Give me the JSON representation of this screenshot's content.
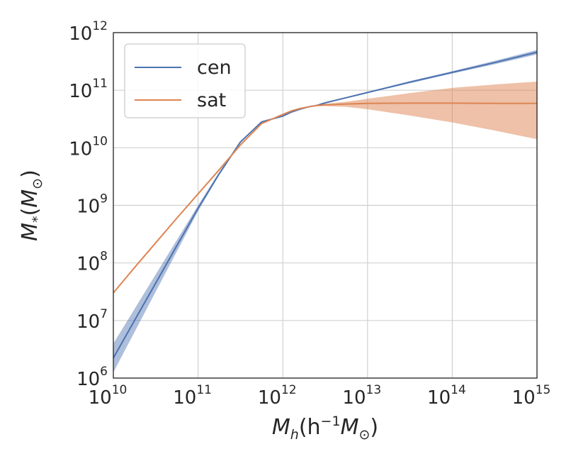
{
  "chart_data": {
    "type": "line",
    "xscale": "log",
    "yscale": "log",
    "xlim": [
      10000000000.0,
      1000000000000000.0
    ],
    "ylim": [
      1000000.0,
      1000000000000.0
    ],
    "grid": true,
    "legend_position": "top-left",
    "xlabel": {
      "base": "M",
      "sub": "h",
      "open": "(h",
      "sup": "−1",
      "mid": "M",
      "sun": "⊙",
      "close": ")"
    },
    "ylabel": {
      "base": "M",
      "sub": "*",
      "open": "(",
      "mid": "M",
      "sun": "⊙",
      "close": ")"
    },
    "x_ticks": [
      {
        "value": 10000000000.0,
        "base": "10",
        "exp": "10"
      },
      {
        "value": 100000000000.0,
        "base": "10",
        "exp": "11"
      },
      {
        "value": 1000000000000.0,
        "base": "10",
        "exp": "12"
      },
      {
        "value": 10000000000000.0,
        "base": "10",
        "exp": "13"
      },
      {
        "value": 100000000000000.0,
        "base": "10",
        "exp": "14"
      },
      {
        "value": 1000000000000000.0,
        "base": "10",
        "exp": "15"
      }
    ],
    "y_ticks": [
      {
        "value": 1000000.0,
        "base": "10",
        "exp": "6"
      },
      {
        "value": 10000000.0,
        "base": "10",
        "exp": "7"
      },
      {
        "value": 100000000.0,
        "base": "10",
        "exp": "8"
      },
      {
        "value": 1000000000.0,
        "base": "10",
        "exp": "9"
      },
      {
        "value": 10000000000.0,
        "base": "10",
        "exp": "10"
      },
      {
        "value": 100000000000.0,
        "base": "10",
        "exp": "11"
      },
      {
        "value": 1000000000000.0,
        "base": "10",
        "exp": "12"
      }
    ],
    "series": [
      {
        "name": "cen",
        "color": "#4c72b0",
        "log_x": [
          10.0,
          10.25,
          10.5,
          10.75,
          11.0,
          11.25,
          11.5,
          11.75,
          12.0,
          12.1,
          12.2,
          12.3,
          12.4,
          12.5,
          12.75,
          13.0,
          13.5,
          14.0,
          14.5,
          15.0
        ],
        "log_y": [
          6.35,
          7.0,
          7.65,
          8.3,
          8.95,
          9.55,
          10.1,
          10.45,
          10.55,
          10.62,
          10.67,
          10.71,
          10.735,
          10.78,
          10.87,
          10.96,
          11.14,
          11.31,
          11.48,
          11.66
        ],
        "band_lower": [
          6.1,
          6.8,
          7.5,
          8.2,
          8.9,
          9.53,
          10.09,
          10.44,
          10.54,
          10.61,
          10.66,
          10.7,
          10.725,
          10.77,
          10.86,
          10.95,
          11.12,
          11.29,
          11.45,
          11.62
        ],
        "band_upper": [
          6.6,
          7.2,
          7.8,
          8.4,
          9.0,
          9.58,
          10.12,
          10.46,
          10.56,
          10.63,
          10.68,
          10.72,
          10.745,
          10.79,
          10.88,
          10.97,
          11.16,
          11.33,
          11.51,
          11.7
        ]
      },
      {
        "name": "sat",
        "color": "#dd8452",
        "log_x": [
          10.0,
          10.25,
          10.5,
          10.75,
          11.0,
          11.25,
          11.5,
          11.75,
          12.0,
          12.1,
          12.2,
          12.3,
          12.4,
          12.5,
          12.75,
          13.0,
          13.5,
          14.0,
          14.5,
          15.0
        ],
        "log_y": [
          7.48,
          7.92,
          8.35,
          8.78,
          9.2,
          9.62,
          10.05,
          10.42,
          10.58,
          10.64,
          10.68,
          10.71,
          10.735,
          10.745,
          10.76,
          10.77,
          10.775,
          10.775,
          10.772,
          10.77
        ],
        "band_lower": [
          7.47,
          7.91,
          8.34,
          8.77,
          9.19,
          9.61,
          10.04,
          10.41,
          10.57,
          10.63,
          10.675,
          10.7,
          10.72,
          10.725,
          10.71,
          10.67,
          10.56,
          10.44,
          10.3,
          10.15
        ],
        "band_upper": [
          7.49,
          7.93,
          8.36,
          8.79,
          9.21,
          9.63,
          10.06,
          10.43,
          10.59,
          10.65,
          10.685,
          10.72,
          10.75,
          10.765,
          10.8,
          10.85,
          10.95,
          11.04,
          11.1,
          11.15
        ]
      }
    ]
  }
}
